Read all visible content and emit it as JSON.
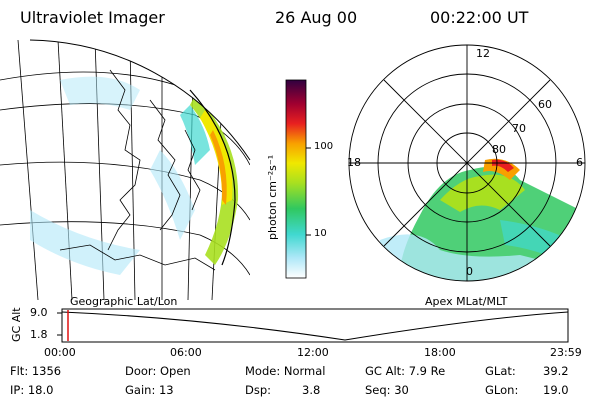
{
  "header": {
    "instrument": "Ultraviolet Imager",
    "date": "26 Aug 00",
    "time": "00:22:00 UT"
  },
  "geographic_panel": {
    "label": "Geographic Lat/Lon"
  },
  "colorbar": {
    "unit_label": "photon cm⁻²s⁻¹",
    "ticks": [
      "100",
      "10"
    ],
    "colors": [
      "#ffffff",
      "#b0e8f8",
      "#40d8d0",
      "#30c860",
      "#a8e020",
      "#f0e800",
      "#f8a000",
      "#e82020",
      "#a00030",
      "#300040"
    ]
  },
  "polar_plot": {
    "label": "Apex MLat/MLT",
    "mlt_labels": [
      "12",
      "18",
      "6",
      "0"
    ],
    "mlat_labels": [
      "60",
      "70",
      "80"
    ]
  },
  "altitude_strip": {
    "ylabel": "GC Alt",
    "y_ticks": [
      "9.0",
      "1.8"
    ],
    "x_ticks": [
      "00:00",
      "06:00",
      "12:00",
      "18:00",
      "23:59"
    ]
  },
  "status": {
    "flt": "Flt: 1356",
    "ip": "IP: 18.0",
    "door": "Door: Open",
    "gain": "Gain: 13",
    "mode": "Mode: Normal",
    "dsp_label": "Dsp:",
    "dsp_value": "3.8",
    "gc_alt": "GC Alt: 7.9 Re",
    "seq": "Seq: 30",
    "glat_label": "GLat:",
    "glat_value": "39.2",
    "glon_label": "GLon:",
    "glon_value": "19.0"
  }
}
